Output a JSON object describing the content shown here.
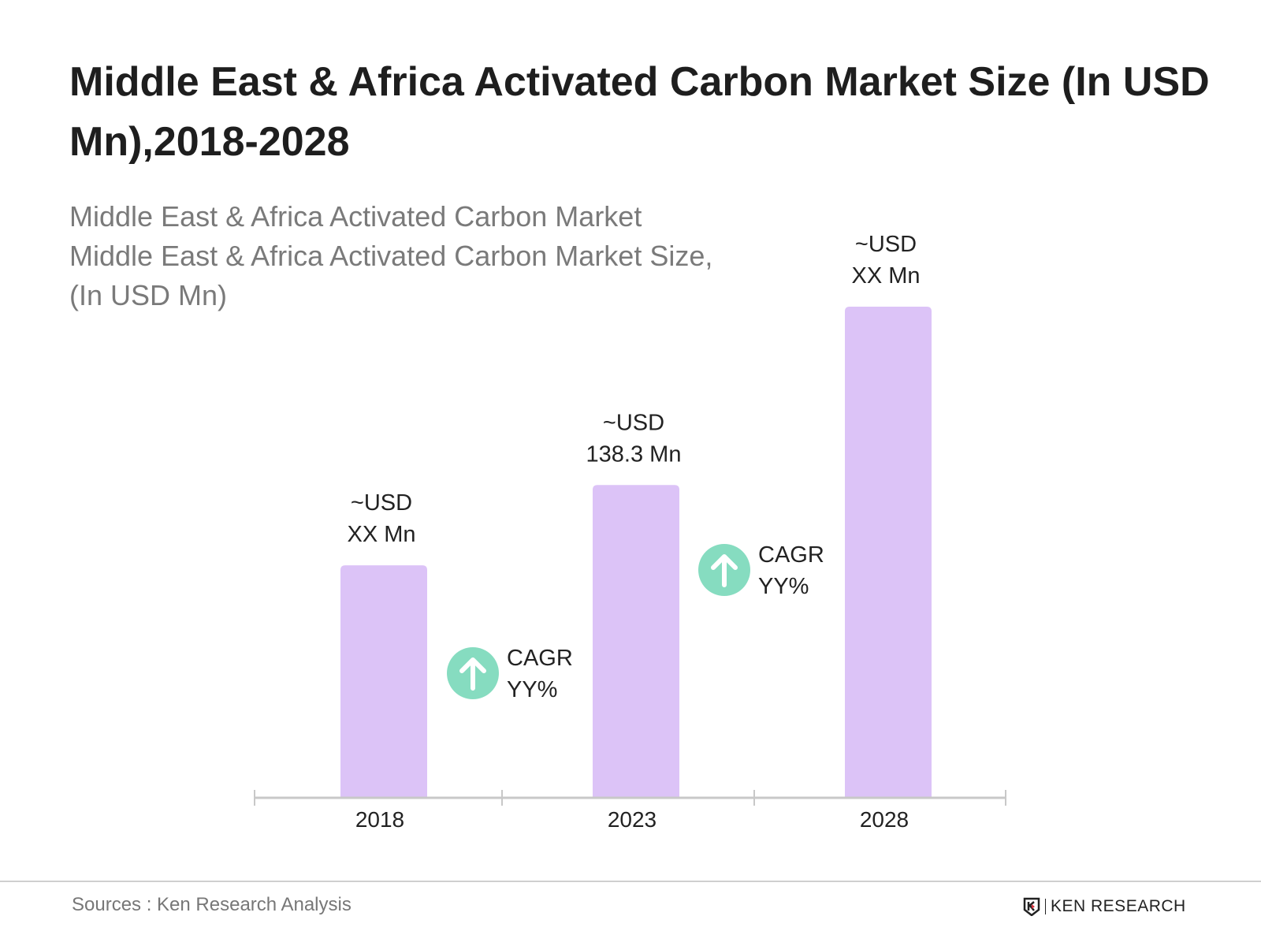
{
  "chart_data": {
    "type": "bar",
    "title": "Middle East & Africa Activated Carbon Market Size (In USD Mn),2018-2028",
    "subtitle_lines": [
      "Middle East & Africa Activated Carbon Market",
      "Middle East & Africa Activated Carbon Market Size,",
      "(In USD Mn)"
    ],
    "categories": [
      "2018",
      "2023",
      "2028"
    ],
    "values": [
      102.8,
      138.3,
      217.2
    ],
    "data_labels": [
      [
        "~USD",
        "XX Mn"
      ],
      [
        "~USD",
        "138.3 Mn"
      ],
      [
        "~USD",
        "XX Mn"
      ]
    ],
    "annotations": [
      {
        "between": [
          "2018",
          "2023"
        ],
        "lines": [
          "CAGR",
          "YY%"
        ],
        "icon": "arrow-up-circle-icon"
      },
      {
        "between": [
          "2023",
          "2028"
        ],
        "lines": [
          "CAGR",
          "YY%"
        ],
        "icon": "arrow-up-circle-icon"
      }
    ],
    "ylim": [
      0,
      217.2
    ],
    "grid": false,
    "colors": {
      "bar": "#dcc3f7",
      "cagr_icon": "#86dcc0",
      "axis": "#c8c8c8"
    }
  },
  "footer": {
    "sources": "Sources : Ken Research Analysis",
    "logo_text": "KEN RESEARCH"
  }
}
